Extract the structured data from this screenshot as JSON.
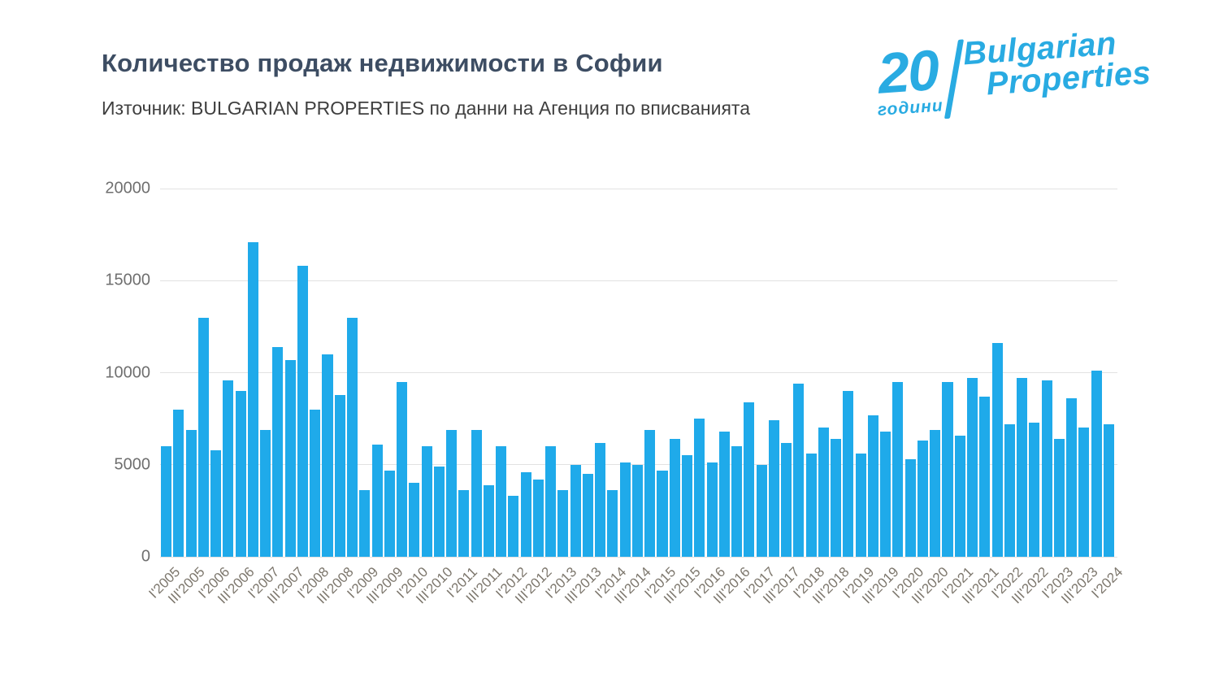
{
  "header": {
    "title": "Количество продаж недвижимости в Софии",
    "subtitle": "Източник: BULGARIAN PROPERTIES по данни на Агенция по вписванията"
  },
  "logo": {
    "number": "20",
    "years_label": "години",
    "brand_line1": "Bulgarian",
    "brand_line2": "Properties",
    "color": "#29abe2"
  },
  "chart_data": {
    "type": "bar",
    "title": "Количество продаж недвижимости в Софии",
    "xlabel": "",
    "ylabel": "",
    "ylim": [
      0,
      20000
    ],
    "yticks": [
      0,
      5000,
      10000,
      15000,
      20000
    ],
    "grid": true,
    "legend": false,
    "bar_color": "#1faaea",
    "x_tick_labels": [
      "I'2005",
      "III'2005",
      "I'2006",
      "III'2006",
      "I'2007",
      "III'2007",
      "I'2008",
      "III'2008",
      "I'2009",
      "III'2009",
      "I'2010",
      "III'2010",
      "I'2011",
      "III'2011",
      "I'2012",
      "III'2012",
      "I'2013",
      "III'2013",
      "I'2014",
      "III'2014",
      "I'2015",
      "III'2015",
      "I'2016",
      "III'2016",
      "I'2017",
      "III'2017",
      "I'2018",
      "III'2018",
      "I'2019",
      "III'2019",
      "I'2020",
      "III'2020",
      "I'2021",
      "III'2021",
      "I'2022",
      "III'2022",
      "I'2023",
      "III'2023",
      "I'2024"
    ],
    "categories": [
      "I'2005",
      "II'2005",
      "III'2005",
      "IV'2005",
      "I'2006",
      "II'2006",
      "III'2006",
      "IV'2006",
      "I'2007",
      "II'2007",
      "III'2007",
      "IV'2007",
      "I'2008",
      "II'2008",
      "III'2008",
      "IV'2008",
      "I'2009",
      "II'2009",
      "III'2009",
      "IV'2009",
      "I'2010",
      "II'2010",
      "III'2010",
      "IV'2010",
      "I'2011",
      "II'2011",
      "III'2011",
      "IV'2011",
      "I'2012",
      "II'2012",
      "III'2012",
      "IV'2012",
      "I'2013",
      "II'2013",
      "III'2013",
      "IV'2013",
      "I'2014",
      "II'2014",
      "III'2014",
      "IV'2014",
      "I'2015",
      "II'2015",
      "III'2015",
      "IV'2015",
      "I'2016",
      "II'2016",
      "III'2016",
      "IV'2016",
      "I'2017",
      "II'2017",
      "III'2017",
      "IV'2017",
      "I'2018",
      "II'2018",
      "III'2018",
      "IV'2018",
      "I'2019",
      "II'2019",
      "III'2019",
      "IV'2019",
      "I'2020",
      "II'2020",
      "III'2020",
      "IV'2020",
      "I'2021",
      "II'2021",
      "III'2021",
      "IV'2021",
      "I'2022",
      "II'2022",
      "III'2022",
      "IV'2022",
      "I'2023",
      "II'2023",
      "III'2023",
      "IV'2023",
      "I'2024"
    ],
    "values": [
      6000,
      8000,
      6900,
      13000,
      5800,
      9600,
      9000,
      17100,
      6900,
      11400,
      10700,
      15800,
      8000,
      11000,
      8800,
      13000,
      3600,
      6100,
      4700,
      9500,
      4000,
      6000,
      4900,
      6900,
      3600,
      6900,
      3900,
      6000,
      3300,
      4600,
      4200,
      6000,
      3600,
      5000,
      4500,
      6200,
      3600,
      5100,
      5000,
      6900,
      4700,
      6400,
      5500,
      7500,
      5100,
      6800,
      6000,
      8400,
      5000,
      7400,
      6200,
      9400,
      5600,
      7000,
      6400,
      9000,
      5600,
      7700,
      6800,
      9500,
      5300,
      6300,
      6900,
      9500,
      6600,
      9700,
      8700,
      11600,
      7200,
      9700,
      7300,
      9600,
      6400,
      8600,
      7000,
      10100,
      7200
    ]
  }
}
